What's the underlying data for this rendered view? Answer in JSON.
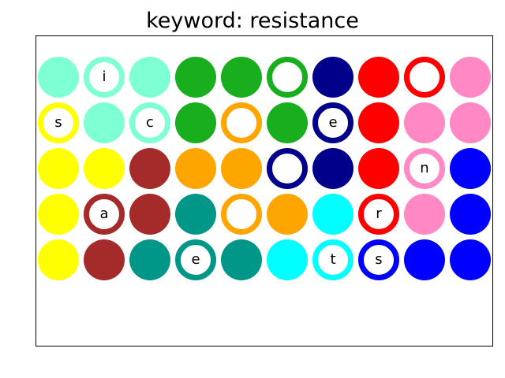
{
  "title": "keyword: resistance",
  "colors": {
    "aquamarine": "#7fffd4",
    "green": "#18ae1e",
    "navy": "#00008b",
    "red": "#ff0000",
    "pink": "#ff88c5",
    "yellow": "#ffff00",
    "brown": "#a52a2a",
    "orange": "#ffa500",
    "blue": "#0000ff",
    "teal": "#009688",
    "cyan": "#00ffff"
  },
  "grid": [
    [
      {
        "color": "aquamarine",
        "hollow": false,
        "letter": ""
      },
      {
        "color": "aquamarine",
        "hollow": true,
        "letter": "i"
      },
      {
        "color": "aquamarine",
        "hollow": false,
        "letter": ""
      },
      {
        "color": "green",
        "hollow": false,
        "letter": ""
      },
      {
        "color": "green",
        "hollow": false,
        "letter": ""
      },
      {
        "color": "green",
        "hollow": true,
        "letter": ""
      },
      {
        "color": "navy",
        "hollow": false,
        "letter": ""
      },
      {
        "color": "red",
        "hollow": false,
        "letter": ""
      },
      {
        "color": "red",
        "hollow": true,
        "letter": ""
      },
      {
        "color": "pink",
        "hollow": false,
        "letter": ""
      }
    ],
    [
      {
        "color": "yellow",
        "hollow": true,
        "letter": "s"
      },
      {
        "color": "aquamarine",
        "hollow": false,
        "letter": ""
      },
      {
        "color": "aquamarine",
        "hollow": true,
        "letter": "c"
      },
      {
        "color": "green",
        "hollow": false,
        "letter": ""
      },
      {
        "color": "orange",
        "hollow": true,
        "letter": ""
      },
      {
        "color": "green",
        "hollow": false,
        "letter": ""
      },
      {
        "color": "navy",
        "hollow": true,
        "letter": "e"
      },
      {
        "color": "red",
        "hollow": false,
        "letter": ""
      },
      {
        "color": "pink",
        "hollow": false,
        "letter": ""
      },
      {
        "color": "pink",
        "hollow": false,
        "letter": ""
      }
    ],
    [
      {
        "color": "yellow",
        "hollow": false,
        "letter": ""
      },
      {
        "color": "yellow",
        "hollow": false,
        "letter": ""
      },
      {
        "color": "brown",
        "hollow": false,
        "letter": ""
      },
      {
        "color": "orange",
        "hollow": false,
        "letter": ""
      },
      {
        "color": "orange",
        "hollow": false,
        "letter": ""
      },
      {
        "color": "navy",
        "hollow": true,
        "letter": ""
      },
      {
        "color": "navy",
        "hollow": false,
        "letter": ""
      },
      {
        "color": "red",
        "hollow": false,
        "letter": ""
      },
      {
        "color": "pink",
        "hollow": true,
        "letter": "n"
      },
      {
        "color": "blue",
        "hollow": false,
        "letter": ""
      }
    ],
    [
      {
        "color": "yellow",
        "hollow": false,
        "letter": ""
      },
      {
        "color": "brown",
        "hollow": true,
        "letter": "a"
      },
      {
        "color": "brown",
        "hollow": false,
        "letter": ""
      },
      {
        "color": "teal",
        "hollow": false,
        "letter": ""
      },
      {
        "color": "orange",
        "hollow": true,
        "letter": ""
      },
      {
        "color": "orange",
        "hollow": false,
        "letter": ""
      },
      {
        "color": "cyan",
        "hollow": false,
        "letter": ""
      },
      {
        "color": "red",
        "hollow": true,
        "letter": "r"
      },
      {
        "color": "pink",
        "hollow": false,
        "letter": ""
      },
      {
        "color": "blue",
        "hollow": false,
        "letter": ""
      }
    ],
    [
      {
        "color": "yellow",
        "hollow": false,
        "letter": ""
      },
      {
        "color": "brown",
        "hollow": false,
        "letter": ""
      },
      {
        "color": "teal",
        "hollow": false,
        "letter": ""
      },
      {
        "color": "teal",
        "hollow": true,
        "letter": "e"
      },
      {
        "color": "teal",
        "hollow": false,
        "letter": ""
      },
      {
        "color": "cyan",
        "hollow": false,
        "letter": ""
      },
      {
        "color": "cyan",
        "hollow": true,
        "letter": "t"
      },
      {
        "color": "blue",
        "hollow": true,
        "letter": "s"
      },
      {
        "color": "blue",
        "hollow": false,
        "letter": ""
      },
      {
        "color": "blue",
        "hollow": false,
        "letter": ""
      }
    ]
  ]
}
